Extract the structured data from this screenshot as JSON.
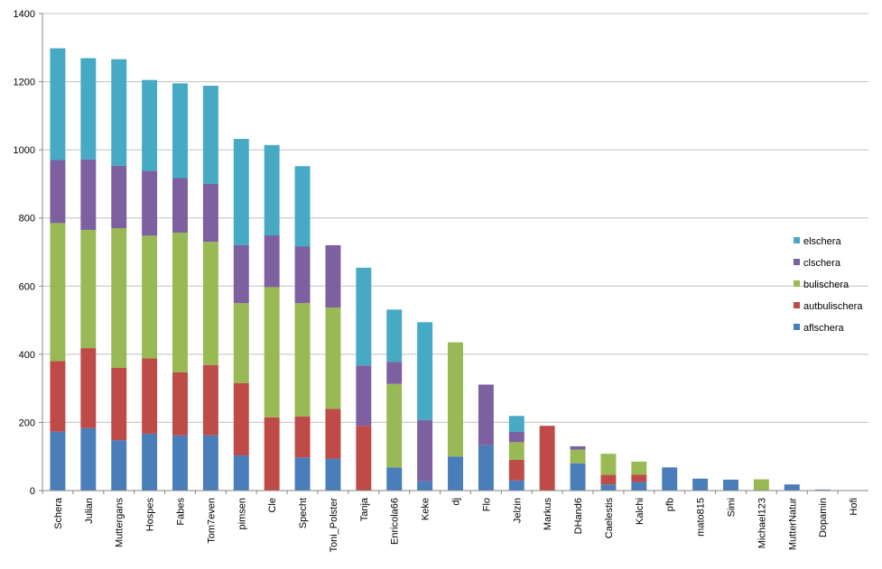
{
  "chart_data": {
    "type": "bar",
    "stacked": true,
    "title": "",
    "xlabel": "",
    "ylabel": "",
    "ylim": [
      0,
      1400
    ],
    "yticks": [
      0,
      200,
      400,
      600,
      800,
      1000,
      1200,
      1400
    ],
    "grid": true,
    "legend_position": "right",
    "categories": [
      "Schera",
      "Julian",
      "Muttergans",
      "Hospes",
      "Fabes",
      "Tom7even",
      "pimsen",
      "Cle",
      "Specht",
      "Toni_Polster",
      "Tanja",
      "Enricola66",
      "Keke",
      "dj",
      "Flo",
      "Jelzin",
      "Markus",
      "DHand6",
      "Caelestis",
      "Kalchi",
      "pfb",
      "mato815",
      "Simi",
      "Michael123",
      "MutterNatur",
      "Dopamin",
      "Hofi"
    ],
    "series": [
      {
        "name": "aflschera",
        "color": "#4a7ebb",
        "values": [
          173,
          183,
          148,
          167,
          162,
          162,
          103,
          0,
          97,
          93,
          0,
          68,
          27,
          100,
          133,
          30,
          0,
          80,
          18,
          25,
          68,
          35,
          32,
          0,
          18,
          3,
          0
        ]
      },
      {
        "name": "autbulischera",
        "color": "#be4b48",
        "values": [
          207,
          235,
          212,
          221,
          185,
          206,
          212,
          215,
          120,
          147,
          190,
          0,
          0,
          0,
          0,
          60,
          190,
          0,
          28,
          22,
          0,
          0,
          0,
          0,
          0,
          0,
          0
        ]
      },
      {
        "name": "bulischera",
        "color": "#98b954",
        "values": [
          405,
          347,
          410,
          360,
          410,
          362,
          235,
          382,
          333,
          297,
          0,
          245,
          0,
          335,
          0,
          52,
          0,
          40,
          62,
          38,
          0,
          0,
          0,
          33,
          0,
          0,
          0
        ]
      },
      {
        "name": "clschera",
        "color": "#7d60a0",
        "values": [
          185,
          207,
          183,
          190,
          160,
          170,
          170,
          152,
          167,
          183,
          177,
          65,
          180,
          0,
          178,
          30,
          0,
          10,
          0,
          0,
          0,
          0,
          0,
          0,
          0,
          0,
          0
        ]
      },
      {
        "name": "elschera",
        "color": "#46aac5",
        "values": [
          328,
          297,
          313,
          267,
          278,
          288,
          312,
          265,
          235,
          0,
          287,
          153,
          287,
          0,
          0,
          47,
          0,
          0,
          0,
          0,
          0,
          0,
          0,
          0,
          0,
          0,
          0
        ]
      }
    ]
  }
}
